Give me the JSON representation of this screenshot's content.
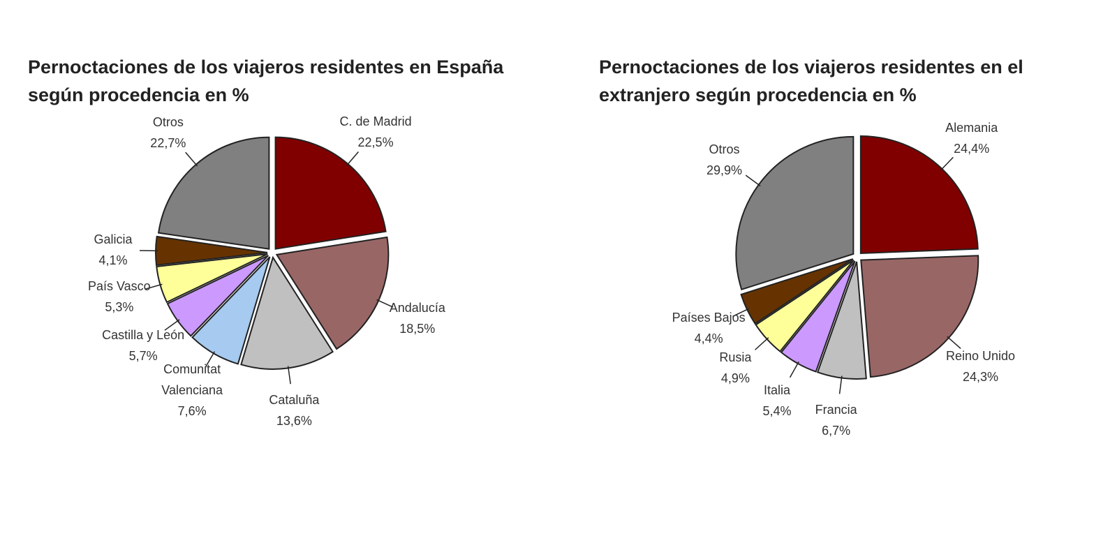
{
  "chart_data": [
    {
      "type": "pie",
      "title": "Pernoctaciones de los viajeros residentes en España según procedencia en %",
      "categories": [
        "C. de Madrid",
        "Andalucía",
        "Cataluña",
        "Comunitat Valenciana",
        "Castilla y León",
        "País Vasco",
        "Galicia",
        "Otros"
      ],
      "values": [
        22.5,
        18.5,
        13.6,
        7.6,
        5.7,
        5.3,
        4.1,
        22.7
      ],
      "value_labels": [
        "22,5%",
        "18,5%",
        "13,6%",
        "7,6%",
        "5,7%",
        "5,3%",
        "4,1%",
        "22,7%"
      ],
      "colors": [
        "#800000",
        "#996666",
        "#c0c0c0",
        "#a6caf0",
        "#cc99ff",
        "#ffff99",
        "#663300",
        "#808080"
      ]
    },
    {
      "type": "pie",
      "title": "Pernoctaciones de los viajeros residentes en el extranjero según procedencia en %",
      "categories": [
        "Alemania",
        "Reino Unido",
        "Francia",
        "Italia",
        "Rusia",
        "Países Bajos",
        "Otros"
      ],
      "values": [
        24.4,
        24.3,
        6.7,
        5.4,
        4.9,
        4.4,
        29.9
      ],
      "value_labels": [
        "24,4%",
        "24,3%",
        "6,7%",
        "5,4%",
        "4,9%",
        "4,4%",
        "29,9%"
      ],
      "colors": [
        "#800000",
        "#996666",
        "#c0c0c0",
        "#cc99ff",
        "#ffff99",
        "#663300",
        "#808080"
      ]
    }
  ]
}
